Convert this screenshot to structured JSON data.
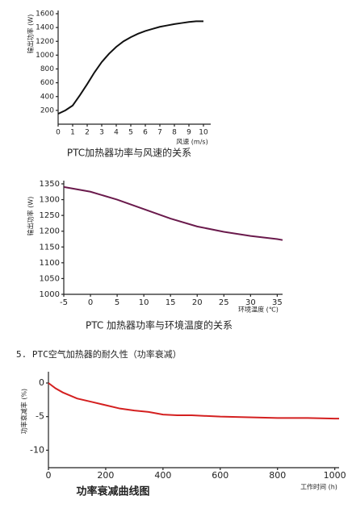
{
  "heading": "5. PTC空气加热器的耐久性（功率衰减）",
  "chart_data": [
    {
      "type": "line",
      "title": "PTC加热器功率与风速的关系",
      "y_label": "输出功率 (W)",
      "x_label": "风速 (m/s)",
      "x": [
        0,
        0.5,
        1,
        1.5,
        2,
        2.5,
        3,
        3.5,
        4,
        4.5,
        5,
        5.5,
        6,
        6.5,
        7,
        7.5,
        8,
        8.5,
        9,
        9.5,
        10
      ],
      "series": [
        {
          "name": "输出功率",
          "color": "#111111",
          "values": [
            150,
            200,
            270,
            420,
            580,
            750,
            900,
            1020,
            1120,
            1200,
            1260,
            1310,
            1350,
            1380,
            1410,
            1430,
            1450,
            1465,
            1480,
            1490,
            1490
          ]
        }
      ],
      "xlim": [
        0,
        10.5
      ],
      "xticks": [
        0,
        1,
        2,
        3,
        4,
        5,
        6,
        7,
        8,
        9,
        10
      ],
      "ylim": [
        0,
        1600
      ],
      "yticks": [
        200,
        400,
        600,
        800,
        1000,
        1200,
        1400,
        1600
      ],
      "grid": false
    },
    {
      "type": "line",
      "title": "PTC 加热器功率与环境温度的关系",
      "y_label": "输出功率 (W)",
      "x_label": "环境温度 (℃)",
      "x": [
        -5,
        0,
        5,
        10,
        15,
        20,
        25,
        30,
        35,
        36
      ],
      "series": [
        {
          "name": "输出功率",
          "color": "#6a1a4c",
          "values": [
            1340,
            1325,
            1300,
            1270,
            1240,
            1215,
            1198,
            1185,
            1175,
            1172
          ]
        }
      ],
      "xlim": [
        -5,
        36
      ],
      "xticks": [
        -5,
        0,
        5,
        10,
        15,
        20,
        25,
        30,
        35
      ],
      "ylim": [
        1000,
        1350
      ],
      "yticks": [
        1000,
        1050,
        1100,
        1150,
        1200,
        1250,
        1300,
        1350
      ],
      "grid": false
    },
    {
      "type": "line",
      "title": "功率衰减曲线图",
      "y_label": "功率衰减率 (%)",
      "x_label": "工作时间 (h)",
      "x": [
        0,
        25,
        50,
        100,
        150,
        200,
        250,
        300,
        350,
        400,
        450,
        500,
        600,
        700,
        800,
        900,
        1000,
        1015
      ],
      "series": [
        {
          "name": "功率衰减率",
          "color": "#d42020",
          "values": [
            0,
            -0.8,
            -1.4,
            -2.3,
            -2.8,
            -3.3,
            -3.8,
            -4.1,
            -4.3,
            -4.7,
            -4.8,
            -4.8,
            -5.0,
            -5.1,
            -5.2,
            -5.2,
            -5.3,
            -5.3
          ]
        }
      ],
      "xlim": [
        0,
        1015
      ],
      "xticks": [
        0,
        200,
        400,
        600,
        800,
        1000
      ],
      "ylim": [
        -12.6,
        1.2
      ],
      "yticks": [
        0,
        -5,
        -10
      ],
      "grid": false
    }
  ]
}
